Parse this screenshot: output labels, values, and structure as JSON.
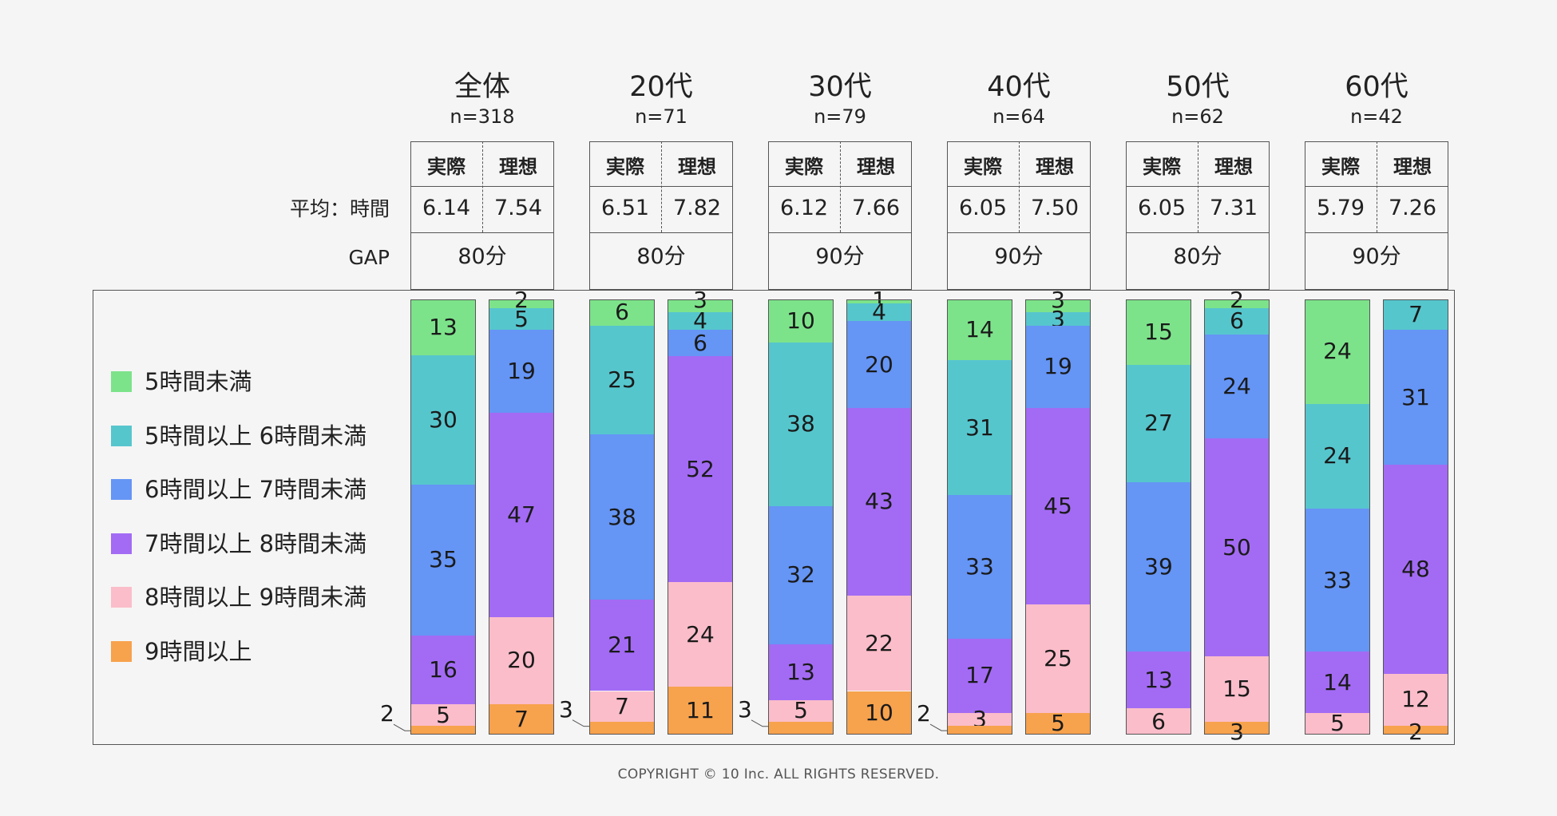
{
  "labels": {
    "avg": "平均：時間",
    "gap": "GAP"
  },
  "colors": [
    "#7de38b",
    "#56c6cd",
    "#6595f5",
    "#a36bf4",
    "#fbbdca",
    "#f7a24d"
  ],
  "chart_data": {
    "type": "bar",
    "stacked": true,
    "percent_scale": [
      0,
      100
    ],
    "legend": [
      "5時間未満",
      "5時間以上 6時間未満",
      "6時間以上 7時間未満",
      "7時間以上 8時間未満",
      "8時間以上 9時間未満",
      "9時間以上"
    ],
    "legend_placement": "left",
    "bar_labels": [
      "実際",
      "理想"
    ],
    "groups": [
      {
        "title": "全体",
        "n": "n=318",
        "avg": [
          "6.14",
          "7.54"
        ],
        "gap": "80分",
        "bars": [
          [
            13,
            30,
            35,
            16,
            5,
            2
          ],
          [
            2,
            5,
            19,
            47,
            20,
            7
          ]
        ]
      },
      {
        "title": "20代",
        "n": "n=71",
        "avg": [
          "6.51",
          "7.82"
        ],
        "gap": "80分",
        "bars": [
          [
            6,
            25,
            38,
            21,
            7,
            3
          ],
          [
            3,
            4,
            6,
            52,
            24,
            11
          ]
        ]
      },
      {
        "title": "30代",
        "n": "n=79",
        "avg": [
          "6.12",
          "7.66"
        ],
        "gap": "90分",
        "bars": [
          [
            10,
            38,
            32,
            13,
            5,
            3
          ],
          [
            1,
            4,
            20,
            43,
            22,
            10
          ]
        ]
      },
      {
        "title": "40代",
        "n": "n=64",
        "avg": [
          "6.05",
          "7.50"
        ],
        "gap": "90分",
        "bars": [
          [
            14,
            31,
            33,
            17,
            3,
            2
          ],
          [
            3,
            3,
            19,
            45,
            25,
            5
          ]
        ]
      },
      {
        "title": "50代",
        "n": "n=62",
        "avg": [
          "6.05",
          "7.31"
        ],
        "gap": "80分",
        "bars": [
          [
            15,
            27,
            39,
            13,
            6,
            0
          ],
          [
            2,
            6,
            24,
            50,
            15,
            3
          ]
        ]
      },
      {
        "title": "60代",
        "n": "n=42",
        "avg": [
          "5.79",
          "7.26"
        ],
        "gap": "90分",
        "bars": [
          [
            24,
            24,
            33,
            14,
            5,
            0
          ],
          [
            0,
            7,
            31,
            48,
            12,
            2
          ]
        ]
      }
    ]
  },
  "footer": {
    "copyright": "COPYRIGHT © 10 Inc. ALL RIGHTS RESERVED."
  }
}
